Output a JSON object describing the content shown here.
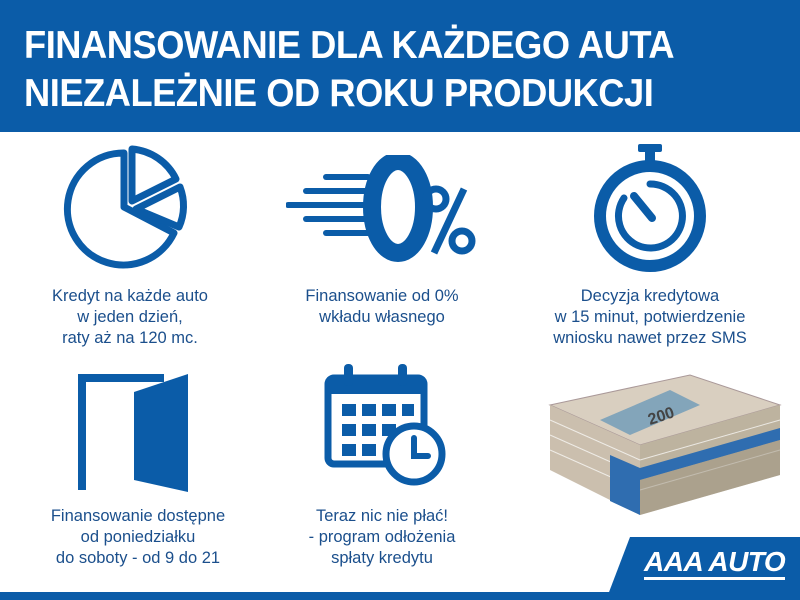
{
  "header": {
    "line1": "FINANSOWANIE DLA KAŻDEGO AUTA",
    "line2": "NIEZALEŻNIE OD ROKU PRODUKCJI"
  },
  "features": [
    {
      "icon": "pie-chart-icon",
      "lines": [
        "Kredyt na każde auto",
        "w jeden dzień,",
        "raty aż na 120 mc."
      ]
    },
    {
      "icon": "zero-percent-icon",
      "lines": [
        "Finansowanie od 0%",
        "wkładu własnego"
      ]
    },
    {
      "icon": "stopwatch-icon",
      "lines": [
        "Decyzja kredytowa",
        "w 15 minut, potwierdzenie",
        "wniosku nawet przez SMS"
      ]
    },
    {
      "icon": "open-door-icon",
      "lines": [
        "Finansowanie dostępne",
        "od poniedziałku",
        "do soboty - od 9 do 21"
      ]
    },
    {
      "icon": "calendar-clock-icon",
      "lines": [
        "Teraz nic nie płać!",
        "- program odłożenia",
        "spłaty kredytu"
      ]
    }
  ],
  "image": {
    "icon": "money-stack-icon",
    "banknote": "200"
  },
  "logo": {
    "text": "AAA AUTO"
  },
  "colors": {
    "brand": "#0b5ca8",
    "text": "#1b4f8c"
  }
}
